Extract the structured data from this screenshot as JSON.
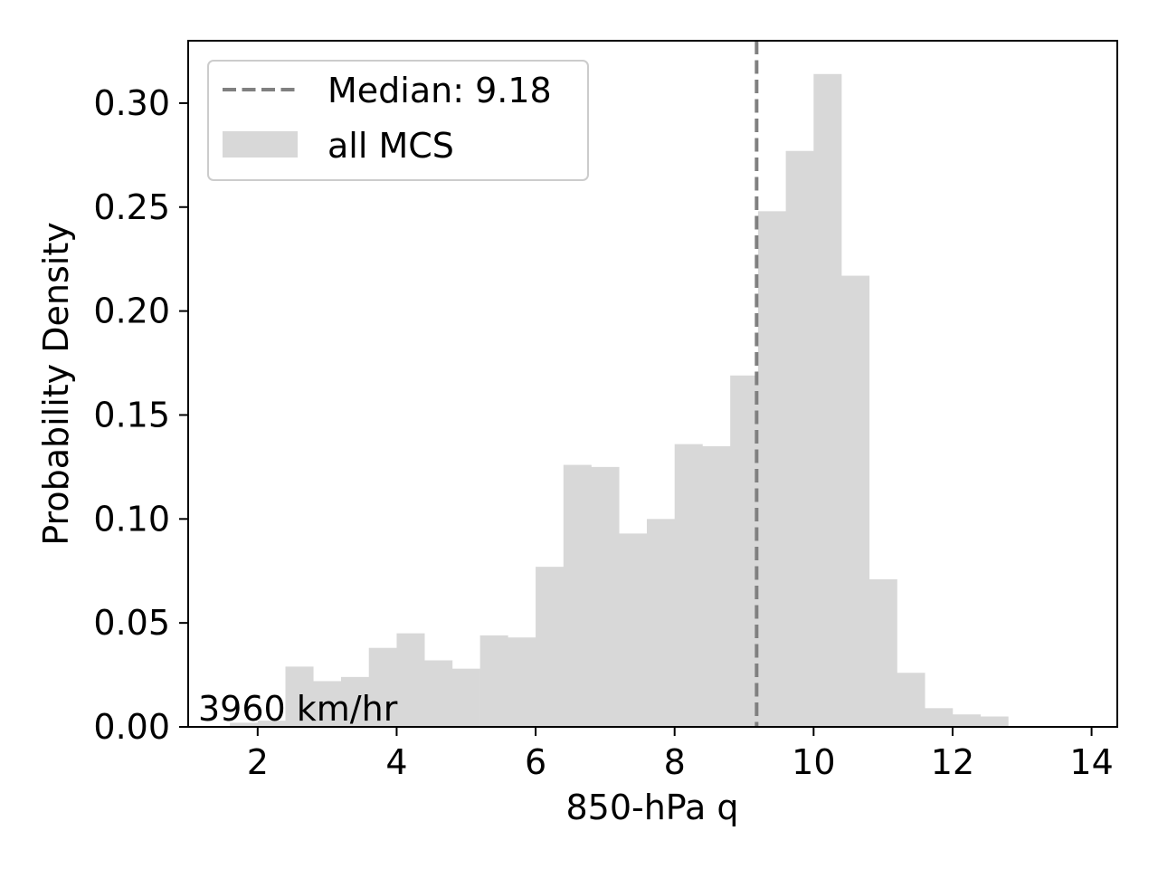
{
  "chart_data": {
    "type": "bar",
    "xlabel": "850-hPa q",
    "ylabel": "Probability Density",
    "xlim": [
      1.0,
      14.37
    ],
    "ylim": [
      0,
      0.33
    ],
    "x_ticks": [
      2,
      4,
      6,
      8,
      10,
      12,
      14
    ],
    "y_ticks": [
      0.0,
      0.05,
      0.1,
      0.15,
      0.2,
      0.25,
      0.3
    ],
    "y_tick_labels": [
      "0.00",
      "0.05",
      "0.10",
      "0.15",
      "0.20",
      "0.25",
      "0.30"
    ],
    "grid": false,
    "legend_position": "top-left",
    "bar_color": "#d8d8d8",
    "median_color": "#808080",
    "bin_width": 0.4,
    "bin_edges_start": 1.6,
    "values": [
      0.002,
      0.003,
      0.029,
      0.022,
      0.024,
      0.038,
      0.045,
      0.032,
      0.028,
      0.044,
      0.043,
      0.077,
      0.126,
      0.125,
      0.093,
      0.1,
      0.136,
      0.135,
      0.169,
      0.248,
      0.277,
      0.314,
      0.217,
      0.071,
      0.026,
      0.009,
      0.006,
      0.005
    ],
    "median": 9.18,
    "legend": [
      {
        "label": "Median: 9.18",
        "kind": "dashed-line"
      },
      {
        "label": "all MCS",
        "kind": "patch"
      }
    ],
    "annotation": "3960 km/hr"
  }
}
